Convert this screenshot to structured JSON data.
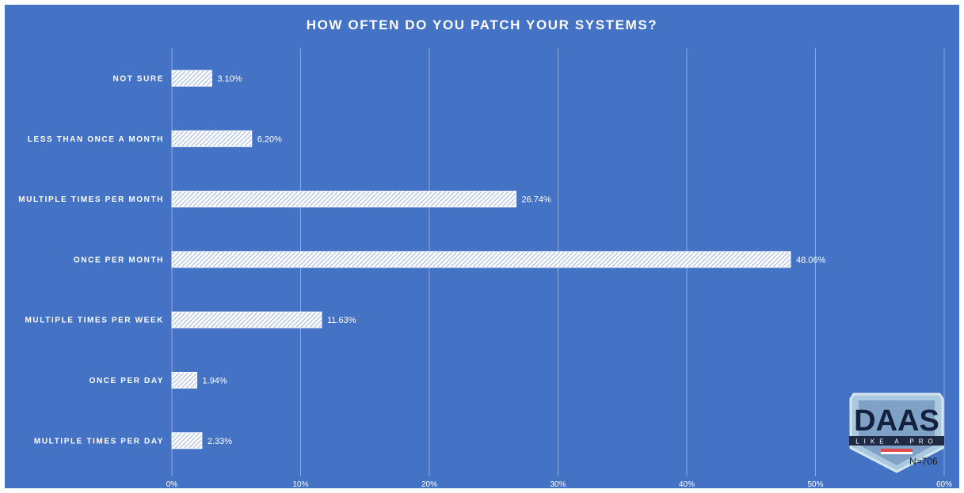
{
  "chart_data": {
    "type": "bar",
    "orientation": "horizontal",
    "title": "HOW OFTEN DO YOU PATCH YOUR SYSTEMS?",
    "categories": [
      "NOT SURE",
      "LESS THAN ONCE A MONTH",
      "MULTIPLE TIMES PER MONTH",
      "ONCE PER MONTH",
      "MULTIPLE TIMES PER WEEK",
      "ONCE PER DAY",
      "MULTIPLE TIMES PER DAY"
    ],
    "values": [
      3.1,
      6.2,
      26.74,
      48.06,
      11.63,
      1.94,
      2.33
    ],
    "value_labels": [
      "3.10%",
      "6.20%",
      "26.74%",
      "48.06%",
      "11.63%",
      "1.94%",
      "2.33%"
    ],
    "xlim": [
      0,
      60
    ],
    "x_ticks": [
      0,
      10,
      20,
      30,
      40,
      50,
      60
    ],
    "x_tick_labels": [
      "0%",
      "10%",
      "20%",
      "30%",
      "40%",
      "50%",
      "60%"
    ],
    "grid": true,
    "legend": "none",
    "bar_fill": "hatched white",
    "background_color": "#4472c4",
    "gridline_color": "#8eaadb"
  },
  "logo": {
    "main_text": "DAAS",
    "sub_text": "LIKE A PRO"
  },
  "annotation": {
    "sample_size": "N=706"
  }
}
